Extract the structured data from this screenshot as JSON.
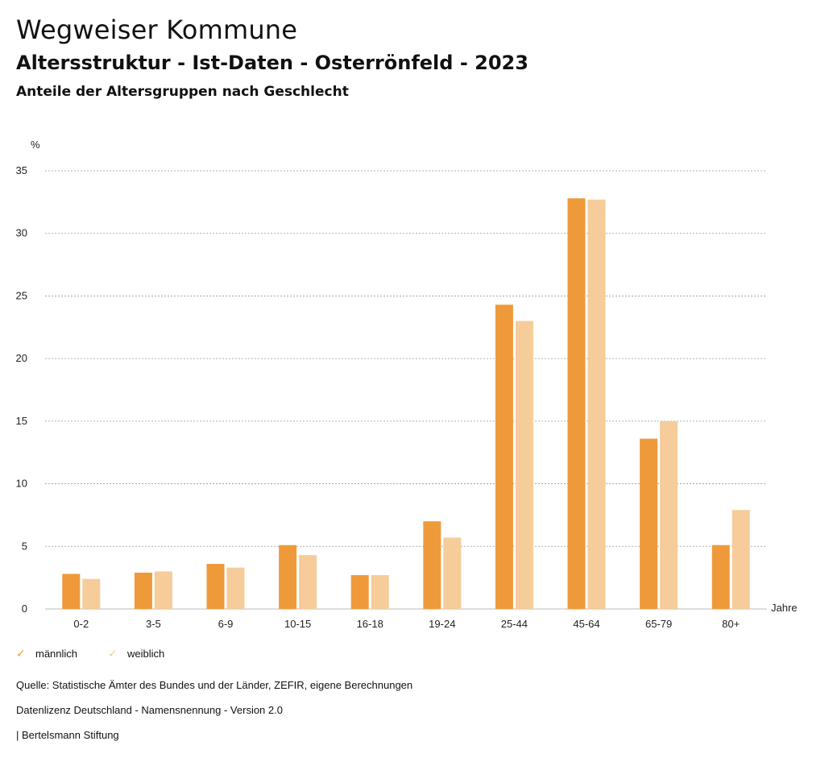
{
  "header": {
    "title": "Wegweiser Kommune",
    "subtitle": "Altersstruktur - Ist-Daten - Osterrönfeld - 2023",
    "description": "Anteile der Altersgruppen nach Geschlecht"
  },
  "chart_data": {
    "type": "bar",
    "ylabel": "%",
    "xlabel": "Jahre",
    "ylim": [
      0,
      35
    ],
    "yticks": [
      0,
      5,
      10,
      15,
      20,
      25,
      30,
      35
    ],
    "grid": true,
    "categories": [
      "0-2",
      "3-5",
      "6-9",
      "10-15",
      "16-18",
      "19-24",
      "25-44",
      "45-64",
      "65-79",
      "80+"
    ],
    "series": [
      {
        "name": "männlich",
        "color": "#EE9A3A",
        "values": [
          2.8,
          2.9,
          3.6,
          5.1,
          2.7,
          7.0,
          24.3,
          32.8,
          13.6,
          5.1
        ]
      },
      {
        "name": "weiblich",
        "color": "#F5CC9A",
        "values": [
          2.4,
          3.0,
          3.3,
          4.3,
          2.7,
          5.7,
          23.0,
          32.7,
          15.0,
          7.9
        ]
      }
    ]
  },
  "legend": {
    "items": [
      {
        "label": "männlich",
        "icon": "check-icon",
        "color": "#EE9A3A"
      },
      {
        "label": "weiblich",
        "icon": "check-icon",
        "color": "#F5CC9A"
      }
    ]
  },
  "footer": {
    "source": "Quelle: Statistische Ämter des Bundes und der Länder, ZEFIR, eigene Berechnungen",
    "license": "Datenlizenz Deutschland - Namensnennung - Version 2.0",
    "publisher": "| Bertelsmann Stiftung"
  }
}
